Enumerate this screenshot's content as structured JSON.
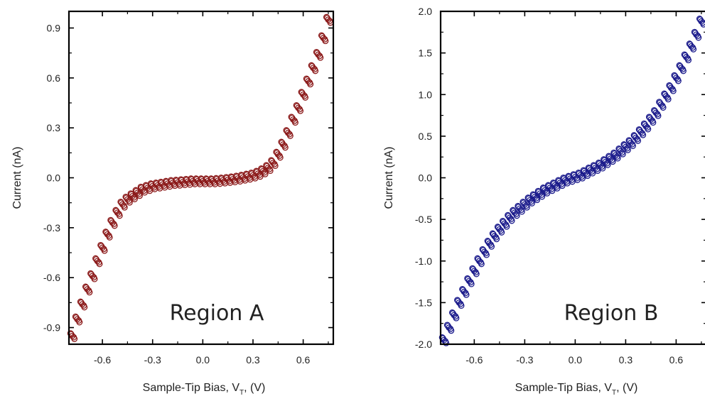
{
  "chart_data": [
    {
      "type": "scatter",
      "title": "",
      "annotation": "Region A",
      "xlabel_main": "Sample-Tip Bias, V",
      "xlabel_sub": "T",
      "xlabel_tail": ", (V)",
      "ylabel": "Current (nA)",
      "xlim": [
        -0.8,
        0.78
      ],
      "ylim": [
        -1.0,
        1.0
      ],
      "xticks": [
        -0.6,
        -0.3,
        0.0,
        0.3,
        0.6
      ],
      "xtick_labels": [
        "-0.6",
        "-0.3",
        "0.0",
        "0.3",
        "0.6"
      ],
      "yticks": [
        -0.9,
        -0.6,
        -0.3,
        0.0,
        0.3,
        0.6,
        0.9
      ],
      "ytick_labels": [
        "-0.9",
        "-0.6",
        "-0.3",
        "0.0",
        "0.3",
        "0.6",
        "0.9"
      ],
      "marker": "open-circle",
      "color": "#8b1a1a",
      "series": [
        {
          "x": [
            -0.78,
            -0.75,
            -0.72,
            -0.69,
            -0.66,
            -0.63,
            -0.6,
            -0.57,
            -0.54,
            -0.51,
            -0.48,
            -0.45,
            -0.42,
            -0.39,
            -0.36,
            -0.33,
            -0.3,
            -0.27,
            -0.24,
            -0.21,
            -0.18,
            -0.15,
            -0.12,
            -0.09,
            -0.06,
            -0.03,
            0.0,
            0.03,
            0.06,
            0.09,
            0.12,
            0.15,
            0.18,
            0.21,
            0.24,
            0.27,
            0.3,
            0.33,
            0.36,
            0.39,
            0.42,
            0.45,
            0.48,
            0.51,
            0.54,
            0.57,
            0.6,
            0.63,
            0.66,
            0.69,
            0.72,
            0.75
          ],
          "y": [
            -0.95,
            -0.85,
            -0.76,
            -0.67,
            -0.59,
            -0.5,
            -0.42,
            -0.34,
            -0.27,
            -0.21,
            -0.16,
            -0.13,
            -0.11,
            -0.09,
            -0.07,
            -0.06,
            -0.05,
            -0.045,
            -0.04,
            -0.035,
            -0.03,
            -0.028,
            -0.025,
            -0.023,
            -0.02,
            -0.02,
            -0.02,
            -0.02,
            -0.02,
            -0.018,
            -0.015,
            -0.012,
            -0.008,
            -0.004,
            0.002,
            0.008,
            0.015,
            0.025,
            0.04,
            0.06,
            0.09,
            0.14,
            0.2,
            0.27,
            0.35,
            0.42,
            0.5,
            0.58,
            0.66,
            0.74,
            0.84,
            0.95
          ]
        }
      ]
    },
    {
      "type": "scatter",
      "title": "",
      "annotation": "Region B",
      "xlabel_main": "Sample-Tip Bias, V",
      "xlabel_sub": "T",
      "xlabel_tail": ", (V)",
      "ylabel": "Current (nA)",
      "xlim": [
        -0.8,
        0.78
      ],
      "ylim": [
        -2.0,
        2.0
      ],
      "xticks": [
        -0.6,
        -0.3,
        0.0,
        0.3,
        0.6
      ],
      "xtick_labels": [
        "-0.6",
        "-0.3",
        "0.0",
        "0.3",
        "0.6"
      ],
      "yticks": [
        -2.0,
        -1.5,
        -1.0,
        -0.5,
        0.0,
        0.5,
        1.0,
        1.5,
        2.0
      ],
      "ytick_labels": [
        "-2.0",
        "-1.5",
        "-1.0",
        "-0.5",
        "0.0",
        "0.5",
        "1.0",
        "1.5",
        "2.0"
      ],
      "marker": "open-circle",
      "color": "#1a1a8b",
      "series": [
        {
          "x": [
            -0.78,
            -0.75,
            -0.72,
            -0.69,
            -0.66,
            -0.63,
            -0.6,
            -0.57,
            -0.54,
            -0.51,
            -0.48,
            -0.45,
            -0.42,
            -0.39,
            -0.36,
            -0.33,
            -0.3,
            -0.27,
            -0.24,
            -0.21,
            -0.18,
            -0.15,
            -0.12,
            -0.09,
            -0.06,
            -0.03,
            0.0,
            0.03,
            0.06,
            0.09,
            0.12,
            0.15,
            0.18,
            0.21,
            0.24,
            0.27,
            0.3,
            0.33,
            0.36,
            0.39,
            0.42,
            0.45,
            0.48,
            0.51,
            0.54,
            0.57,
            0.6,
            0.63,
            0.66,
            0.69,
            0.72,
            0.75
          ],
          "y": [
            -1.95,
            -1.8,
            -1.65,
            -1.5,
            -1.37,
            -1.24,
            -1.12,
            -1.0,
            -0.89,
            -0.79,
            -0.7,
            -0.62,
            -0.55,
            -0.48,
            -0.42,
            -0.37,
            -0.32,
            -0.27,
            -0.23,
            -0.19,
            -0.15,
            -0.12,
            -0.09,
            -0.06,
            -0.03,
            -0.01,
            0.01,
            0.03,
            0.06,
            0.09,
            0.12,
            0.15,
            0.19,
            0.23,
            0.27,
            0.32,
            0.37,
            0.42,
            0.48,
            0.55,
            0.62,
            0.7,
            0.78,
            0.88,
            0.98,
            1.08,
            1.2,
            1.32,
            1.45,
            1.58,
            1.72,
            1.88
          ]
        }
      ]
    }
  ]
}
